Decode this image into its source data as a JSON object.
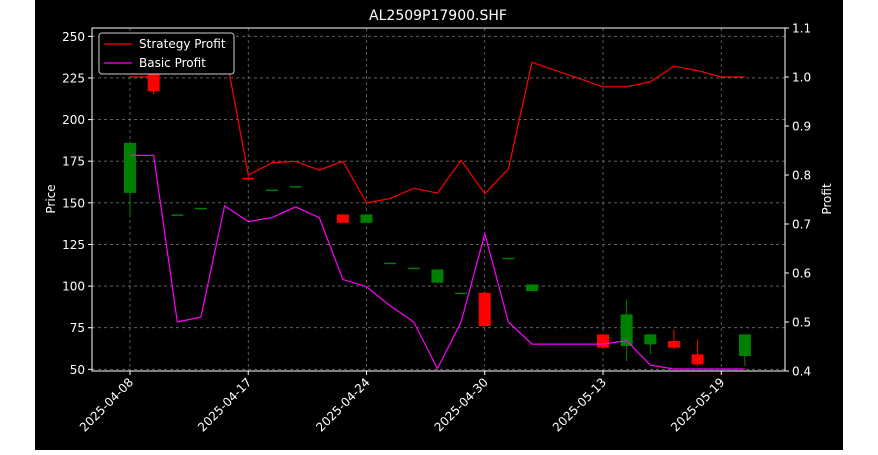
{
  "chart_data": {
    "type": "candlestick",
    "title": "AL2509P17900.SHF",
    "ylabel": "Price",
    "y2label": "Profit",
    "ylim": [
      49,
      255
    ],
    "y2lim": [
      0.4,
      1.1
    ],
    "yticks": [
      50,
      75,
      100,
      125,
      150,
      175,
      200,
      225,
      250
    ],
    "y2ticks": [
      "0.4",
      "0.5",
      "0.6",
      "0.7",
      "0.8",
      "0.9",
      "1.0",
      "1.1"
    ],
    "xtick_labels": [
      "2025-04-08",
      "2025-04-17",
      "2025-04-24",
      "2025-04-30",
      "2025-05-13",
      "2025-05-19"
    ],
    "xtick_positions": [
      0,
      5,
      10,
      15,
      20,
      25
    ],
    "grid": true,
    "legend_position": "top-left",
    "colors": {
      "background": "#000000",
      "figure_background": "#ffffff",
      "up": "#008000",
      "down": "#ff0000",
      "strategy_line": "#ff0000",
      "basic_line": "#ff00ff",
      "text": "#ffffff"
    },
    "candles": [
      {
        "open": 156,
        "high": 187,
        "low": 142,
        "close": 186
      },
      {
        "open": 234,
        "high": 244,
        "low": 215,
        "close": 217
      },
      {
        "open": 143,
        "high": 143,
        "low": 143,
        "close": 143
      },
      {
        "open": 147,
        "high": 147,
        "low": 147,
        "close": 147
      },
      {
        "open": 249,
        "high": 249,
        "low": 249,
        "close": 249
      },
      {
        "open": 165,
        "high": 166,
        "low": 163,
        "close": 164
      },
      {
        "open": 158,
        "high": 158,
        "low": 158,
        "close": 158
      },
      {
        "open": 160,
        "high": 160,
        "low": 160,
        "close": 160
      },
      {
        "open": null,
        "high": null,
        "low": null,
        "close": null
      },
      {
        "open": 143,
        "high": 143,
        "low": 138,
        "close": 138
      },
      {
        "open": 138,
        "high": 143,
        "low": 138,
        "close": 143
      },
      {
        "open": 114,
        "high": 114,
        "low": 114,
        "close": 114
      },
      {
        "open": 111,
        "high": 111,
        "low": 111,
        "close": 111
      },
      {
        "open": 102,
        "high": 110,
        "low": 102,
        "close": 110
      },
      {
        "open": 96,
        "high": 96,
        "low": 96,
        "close": 96
      },
      {
        "open": 96,
        "high": 97,
        "low": 75,
        "close": 76
      },
      {
        "open": 117,
        "high": 117,
        "low": 117,
        "close": 117
      },
      {
        "open": 97,
        "high": 101,
        "low": 97,
        "close": 101
      },
      {
        "open": 71,
        "high": 71,
        "low": 62,
        "close": 63
      },
      {
        "open": 64,
        "high": 92,
        "low": 55,
        "close": 83
      },
      {
        "open": 65,
        "high": 71,
        "low": 59,
        "close": 71
      },
      {
        "open": 67,
        "high": 74,
        "low": 62,
        "close": 63
      },
      {
        "open": 59,
        "high": 68,
        "low": 52,
        "close": 53
      },
      {
        "open": 58,
        "high": 71,
        "low": 52,
        "close": 71
      }
    ],
    "candle_x": [
      0,
      1,
      2,
      3,
      4,
      5,
      6,
      7,
      8,
      9,
      10,
      11,
      12,
      13,
      14,
      15,
      16,
      17,
      20,
      21,
      22,
      23,
      24,
      26
    ],
    "series": [
      {
        "name": "Strategy Profit",
        "axis": "right",
        "x": [
          0,
          1,
          2,
          3,
          4,
          5,
          6,
          7,
          8,
          9,
          10,
          11,
          12,
          13,
          14,
          15,
          16,
          17,
          18,
          19,
          20,
          21,
          22,
          23,
          24,
          25
        ],
        "values": [
          1.0,
          1.0,
          1.08,
          1.06,
          1.06,
          0.8,
          0.825,
          0.828,
          0.81,
          0.828,
          0.743,
          0.752,
          0.773,
          0.763,
          0.83,
          0.762,
          0.812,
          1.03,
          0.98,
          0.98,
          0.99,
          1.022,
          1.013,
          1.0,
          1.0,
          1.0
        ]
      },
      {
        "name": "Basic Profit",
        "axis": "right",
        "x": [
          0,
          1,
          2,
          3,
          4,
          5,
          6,
          7,
          8,
          9,
          10,
          11,
          12,
          13,
          14,
          15,
          16,
          17,
          18,
          19,
          20,
          21,
          22,
          23,
          24,
          25
        ],
        "values": [
          0.84,
          0.84,
          0.5,
          0.51,
          0.737,
          0.705,
          0.713,
          0.735,
          0.713,
          0.587,
          0.572,
          0.533,
          0.5,
          0.405,
          0.5,
          0.68,
          0.5,
          0.455,
          0.455,
          0.462,
          0.412,
          0.404,
          0.404,
          0.404,
          0.404,
          0.404
        ]
      }
    ],
    "strategy_x": [
      0,
      1,
      2,
      3,
      4,
      5,
      6,
      7,
      8,
      9,
      10,
      11,
      12,
      13,
      14,
      15,
      16,
      17,
      20,
      21,
      22,
      23,
      24,
      25,
      26,
      26
    ],
    "basic_x": [
      0,
      1,
      2,
      3,
      4,
      5,
      6,
      7,
      8,
      9,
      10,
      11,
      12,
      13,
      14,
      15,
      16,
      17,
      20,
      21,
      22,
      23,
      24,
      25,
      26,
      26
    ]
  }
}
